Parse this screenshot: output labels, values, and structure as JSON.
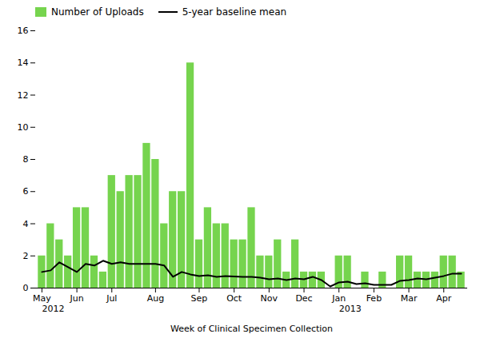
{
  "chart_data": {
    "type": "bar",
    "categories": [
      "May",
      null,
      null,
      null,
      "Jun",
      null,
      null,
      null,
      "Jul",
      null,
      null,
      null,
      null,
      "Aug",
      null,
      null,
      null,
      null,
      "Sep",
      null,
      null,
      null,
      "Oct",
      null,
      null,
      null,
      "Nov",
      null,
      null,
      null,
      "Dec",
      null,
      null,
      null,
      "Jan",
      null,
      null,
      null,
      "Feb",
      null,
      null,
      null,
      "Mar",
      null,
      null,
      null,
      "Apr",
      null,
      null
    ],
    "series": [
      {
        "name": "Number of Uploads",
        "type": "bar",
        "color": "#76d44e",
        "values": [
          2,
          4,
          3,
          2,
          5,
          5,
          2,
          1,
          7,
          6,
          7,
          7,
          9,
          8,
          4,
          6,
          6,
          14,
          3,
          5,
          4,
          4,
          3,
          3,
          5,
          2,
          2,
          3,
          1,
          3,
          1,
          1,
          1,
          0,
          2,
          2,
          0,
          1,
          0,
          1,
          0,
          2,
          2,
          1,
          1,
          1,
          2,
          2,
          1
        ]
      },
      {
        "name": "5-year baseline mean",
        "type": "line",
        "color": "#000000",
        "values": [
          1.0,
          1.1,
          1.6,
          1.3,
          1.0,
          1.5,
          1.4,
          1.7,
          1.5,
          1.6,
          1.5,
          1.5,
          1.5,
          1.5,
          1.4,
          0.7,
          1.0,
          0.85,
          0.75,
          0.8,
          0.7,
          0.75,
          0.72,
          0.7,
          0.7,
          0.65,
          0.55,
          0.6,
          0.5,
          0.6,
          0.55,
          0.7,
          0.5,
          0.1,
          0.35,
          0.4,
          0.25,
          0.3,
          0.2,
          0.2,
          0.2,
          0.45,
          0.5,
          0.6,
          0.55,
          0.65,
          0.75,
          0.9,
          0.9
        ]
      }
    ],
    "xlabel": "Week of Clinical Specimen Collection",
    "ylim": [
      0,
      16
    ],
    "yticks": [
      0,
      2,
      4,
      6,
      8,
      10,
      12,
      14,
      16
    ],
    "annotations": [
      {
        "text": "2012",
        "category": "May"
      },
      {
        "text": "2013",
        "category": "Jan"
      }
    ],
    "legend": "upper left",
    "grid": false
  }
}
